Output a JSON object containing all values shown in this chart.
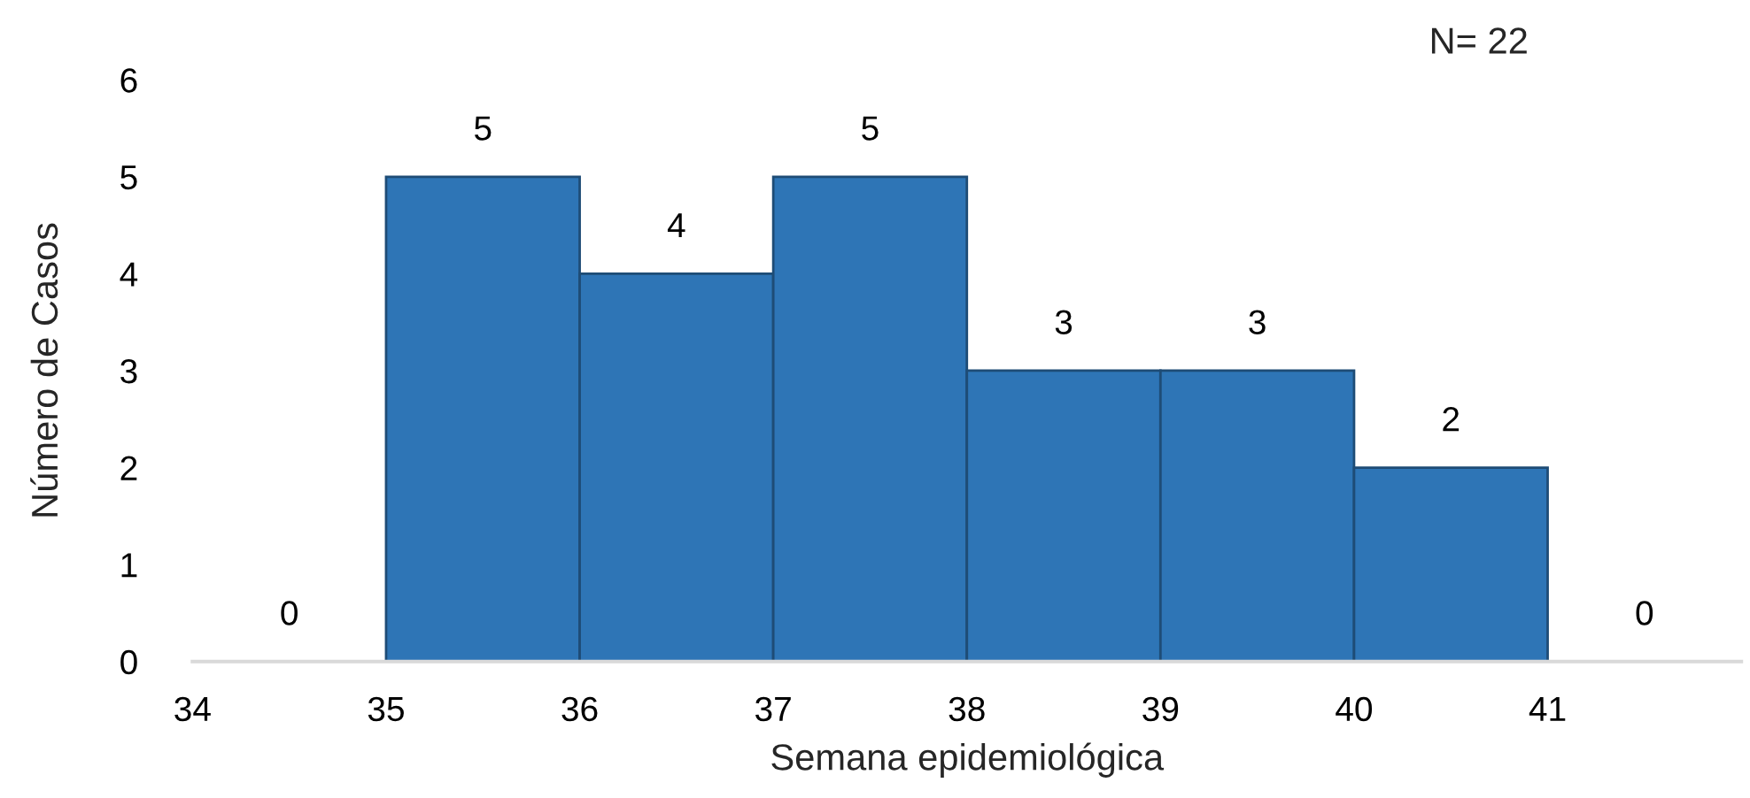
{
  "chart_data": {
    "type": "histogram",
    "bins": [
      34,
      35,
      36,
      37,
      38,
      39,
      40,
      41,
      42
    ],
    "values": [
      0,
      5,
      4,
      5,
      3,
      3,
      2,
      0
    ],
    "color": "#2e75b6",
    "xlabel": "Semana epidemiológica",
    "ylabel": "Número de Casos",
    "annotations": [
      "N= 22"
    ],
    "xlim": [
      34,
      42
    ],
    "xticks": [
      34,
      35,
      36,
      37,
      38,
      39,
      40,
      41
    ],
    "ylim": [
      0,
      6
    ],
    "yticks": [
      0,
      1,
      2,
      3,
      4,
      5,
      6
    ],
    "data_labels": true,
    "grid": false,
    "legend": false
  }
}
